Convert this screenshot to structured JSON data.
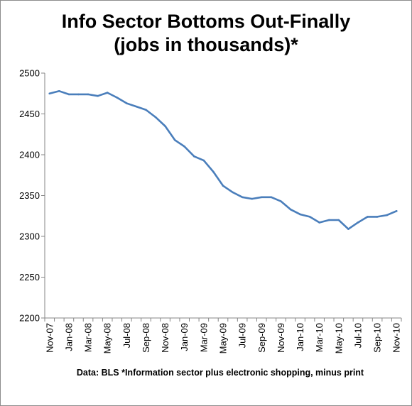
{
  "title_lines": [
    "Info Sector Bottoms Out-Finally",
    "(jobs in thousands)*"
  ],
  "footnote": "Data: BLS  *Information sector plus electronic shopping, minus print",
  "colors": {
    "line": "#4a7ebb",
    "axis": "#868686",
    "frame": "#8c8c8c"
  },
  "chart_data": {
    "type": "line",
    "title": "Info Sector Bottoms Out-Finally (jobs in thousands)*",
    "xlabel": "",
    "ylabel": "",
    "ylim": [
      2200,
      2500
    ],
    "yticks": [
      2200,
      2250,
      2300,
      2350,
      2400,
      2450,
      2500
    ],
    "grid": false,
    "legend": "none",
    "x": [
      "Nov-07",
      "Dec-07",
      "Jan-08",
      "Feb-08",
      "Mar-08",
      "Apr-08",
      "May-08",
      "Jun-08",
      "Jul-08",
      "Aug-08",
      "Sep-08",
      "Oct-08",
      "Nov-08",
      "Dec-08",
      "Jan-09",
      "Feb-09",
      "Mar-09",
      "Apr-09",
      "May-09",
      "Jun-09",
      "Jul-09",
      "Aug-09",
      "Sep-09",
      "Oct-09",
      "Nov-09",
      "Dec-09",
      "Jan-10",
      "Feb-10",
      "Mar-10",
      "Apr-10",
      "May-10",
      "Jun-10",
      "Jul-10",
      "Aug-10",
      "Sep-10",
      "Oct-10",
      "Nov-10"
    ],
    "xtick_labels": [
      "Nov-07",
      "Jan-08",
      "Mar-08",
      "May-08",
      "Jul-08",
      "Sep-08",
      "Nov-08",
      "Jan-09",
      "Mar-09",
      "May-09",
      "Jul-09",
      "Sep-09",
      "Nov-09",
      "Jan-10",
      "Mar-10",
      "May-10",
      "Jul-10",
      "Sep-10",
      "Nov-10"
    ],
    "series": [
      {
        "values": [
          2475,
          2478,
          2474,
          2474,
          2474,
          2472,
          2476,
          2470,
          2463,
          2459,
          2455,
          2446,
          2435,
          2418,
          2410,
          2398,
          2393,
          2379,
          2362,
          2354,
          2348,
          2346,
          2348,
          2348,
          2343,
          2333,
          2327,
          2324,
          2317,
          2320,
          2320,
          2309,
          2317,
          2324,
          2324,
          2326,
          2331
        ]
      }
    ]
  }
}
